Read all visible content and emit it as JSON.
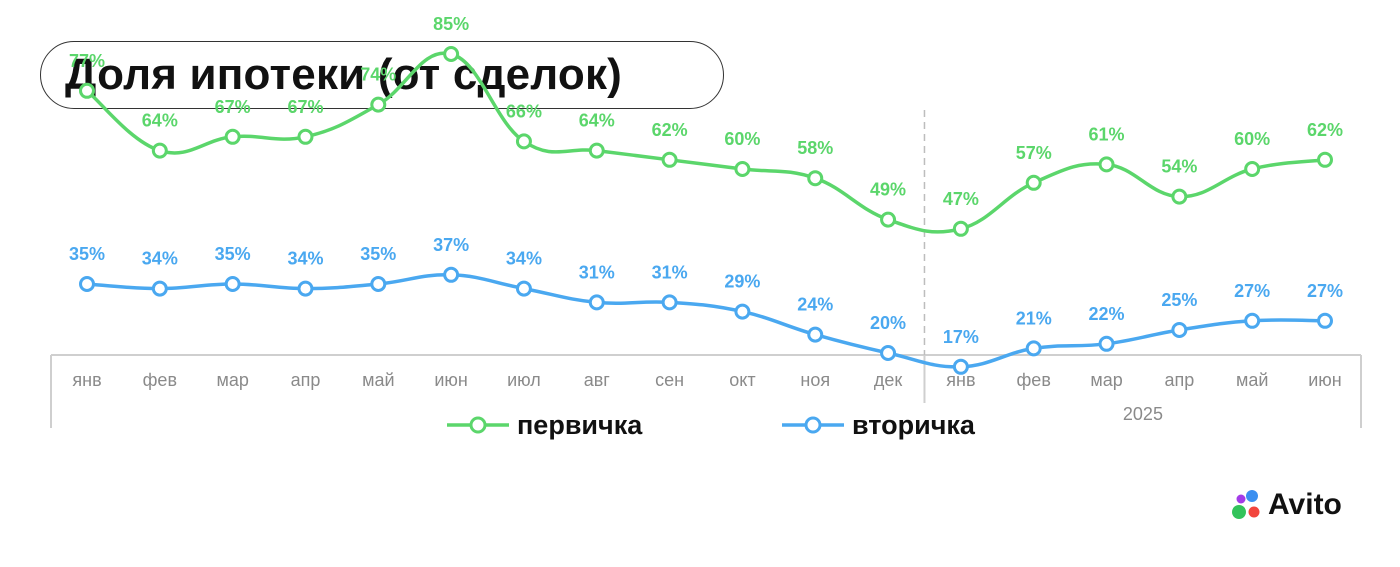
{
  "title": "Доля ипотеки (от сделок)",
  "chart_data": {
    "type": "line",
    "categories": [
      "янв",
      "фев",
      "мар",
      "апр",
      "май",
      "июн",
      "июл",
      "авг",
      "сен",
      "окт",
      "ноя",
      "дек",
      "янв",
      "фев",
      "мар",
      "апр",
      "май",
      "июн"
    ],
    "year_label": "2025",
    "y_unit": "%",
    "series": [
      {
        "name": "первичка",
        "color": "#5BD66B",
        "values": [
          77,
          64,
          67,
          67,
          74,
          85,
          66,
          64,
          62,
          60,
          58,
          49,
          47,
          57,
          61,
          54,
          60,
          62
        ]
      },
      {
        "name": "вторичка",
        "color": "#4AA8F0",
        "values": [
          35,
          34,
          35,
          34,
          35,
          37,
          34,
          31,
          31,
          29,
          24,
          20,
          17,
          21,
          22,
          25,
          27,
          27
        ]
      }
    ],
    "legend_position": "bottom",
    "divider_after_category_index": 11
  },
  "brand": {
    "name": "Avito"
  }
}
